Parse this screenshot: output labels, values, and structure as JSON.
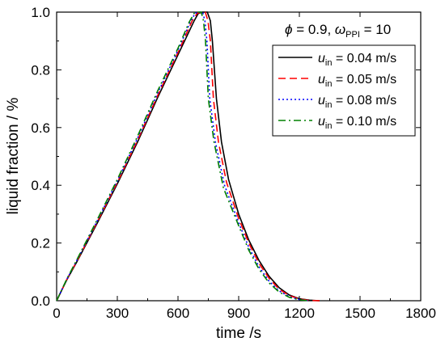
{
  "chart_data": {
    "type": "line",
    "xlabel": "time /s",
    "ylabel": "liquid fraction / %",
    "xlim": [
      0,
      1800
    ],
    "ylim": [
      0,
      1.0
    ],
    "xticks": [
      "0",
      "300",
      "600",
      "900",
      "1200",
      "1500",
      "1800"
    ],
    "yticks": [
      "0.0",
      "0.2",
      "0.4",
      "0.6",
      "0.8",
      "1.0"
    ],
    "annotation": {
      "phi_symbol": "ϕ",
      "phi_text": " = 0.9, ",
      "omega_symbol": "ω",
      "omega_sub": "PPI",
      "omega_text": " = 10"
    },
    "legend_position": "top-right",
    "series": [
      {
        "name": "u_in = 0.04 m/s",
        "legend_symbol": "u",
        "legend_sub": "in",
        "legend_text": " = 0.04 m/s",
        "color": "#000000",
        "dash": "solid",
        "points": [
          [
            0,
            0
          ],
          [
            50,
            0.072
          ],
          [
            100,
            0.135
          ],
          [
            200,
            0.268
          ],
          [
            300,
            0.405
          ],
          [
            400,
            0.55
          ],
          [
            500,
            0.705
          ],
          [
            600,
            0.852
          ],
          [
            680,
            0.97
          ],
          [
            700,
            0.995
          ],
          [
            720,
            1.0
          ],
          [
            745,
            1.0
          ],
          [
            760,
            0.97
          ],
          [
            770,
            0.9
          ],
          [
            790,
            0.7
          ],
          [
            815,
            0.55
          ],
          [
            850,
            0.42
          ],
          [
            900,
            0.3
          ],
          [
            950,
            0.21
          ],
          [
            1000,
            0.14
          ],
          [
            1050,
            0.085
          ],
          [
            1100,
            0.045
          ],
          [
            1150,
            0.02
          ],
          [
            1200,
            0.007
          ],
          [
            1250,
            0.002
          ],
          [
            1300,
            0.0
          ]
        ]
      },
      {
        "name": "u_in = 0.05 m/s",
        "legend_symbol": "u",
        "legend_sub": "in",
        "legend_text": " = 0.05 m/s",
        "color": "#ff0000",
        "dash": "dashed",
        "points": [
          [
            0,
            0
          ],
          [
            50,
            0.073
          ],
          [
            100,
            0.137
          ],
          [
            200,
            0.272
          ],
          [
            300,
            0.41
          ],
          [
            400,
            0.556
          ],
          [
            500,
            0.712
          ],
          [
            600,
            0.86
          ],
          [
            670,
            0.97
          ],
          [
            695,
            0.996
          ],
          [
            715,
            1.0
          ],
          [
            735,
            1.0
          ],
          [
            748,
            0.97
          ],
          [
            760,
            0.9
          ],
          [
            775,
            0.7
          ],
          [
            800,
            0.55
          ],
          [
            840,
            0.41
          ],
          [
            900,
            0.285
          ],
          [
            950,
            0.2
          ],
          [
            1000,
            0.13
          ],
          [
            1050,
            0.078
          ],
          [
            1100,
            0.04
          ],
          [
            1150,
            0.018
          ],
          [
            1200,
            0.006
          ],
          [
            1250,
            0.001
          ],
          [
            1300,
            0.0
          ]
        ]
      },
      {
        "name": "u_in = 0.08 m/s",
        "legend_symbol": "u",
        "legend_sub": "in",
        "legend_text": " = 0.08 m/s",
        "color": "#0000ff",
        "dash": "dotted",
        "points": [
          [
            0,
            0
          ],
          [
            50,
            0.074
          ],
          [
            100,
            0.14
          ],
          [
            200,
            0.276
          ],
          [
            300,
            0.415
          ],
          [
            400,
            0.563
          ],
          [
            500,
            0.72
          ],
          [
            600,
            0.868
          ],
          [
            660,
            0.965
          ],
          [
            685,
            0.996
          ],
          [
            705,
            1.0
          ],
          [
            722,
            1.0
          ],
          [
            733,
            0.97
          ],
          [
            743,
            0.9
          ],
          [
            757,
            0.7
          ],
          [
            785,
            0.55
          ],
          [
            830,
            0.4
          ],
          [
            900,
            0.27
          ],
          [
            950,
            0.185
          ],
          [
            1000,
            0.118
          ],
          [
            1050,
            0.068
          ],
          [
            1100,
            0.034
          ],
          [
            1150,
            0.014
          ],
          [
            1200,
            0.004
          ],
          [
            1250,
            0.0
          ]
        ]
      },
      {
        "name": "u_in = 0.10 m/s",
        "legend_symbol": "u",
        "legend_sub": "in",
        "legend_text": " = 0.10 m/s",
        "color": "#008000",
        "dash": "dashdot",
        "points": [
          [
            0,
            0
          ],
          [
            50,
            0.075
          ],
          [
            100,
            0.142
          ],
          [
            200,
            0.28
          ],
          [
            300,
            0.42
          ],
          [
            400,
            0.57
          ],
          [
            500,
            0.728
          ],
          [
            600,
            0.875
          ],
          [
            655,
            0.965
          ],
          [
            680,
            0.996
          ],
          [
            700,
            1.0
          ],
          [
            715,
            1.0
          ],
          [
            726,
            0.97
          ],
          [
            736,
            0.9
          ],
          [
            750,
            0.7
          ],
          [
            778,
            0.55
          ],
          [
            825,
            0.39
          ],
          [
            900,
            0.26
          ],
          [
            950,
            0.175
          ],
          [
            1000,
            0.11
          ],
          [
            1050,
            0.062
          ],
          [
            1100,
            0.03
          ],
          [
            1150,
            0.012
          ],
          [
            1200,
            0.003
          ],
          [
            1250,
            0.0
          ]
        ]
      }
    ]
  }
}
